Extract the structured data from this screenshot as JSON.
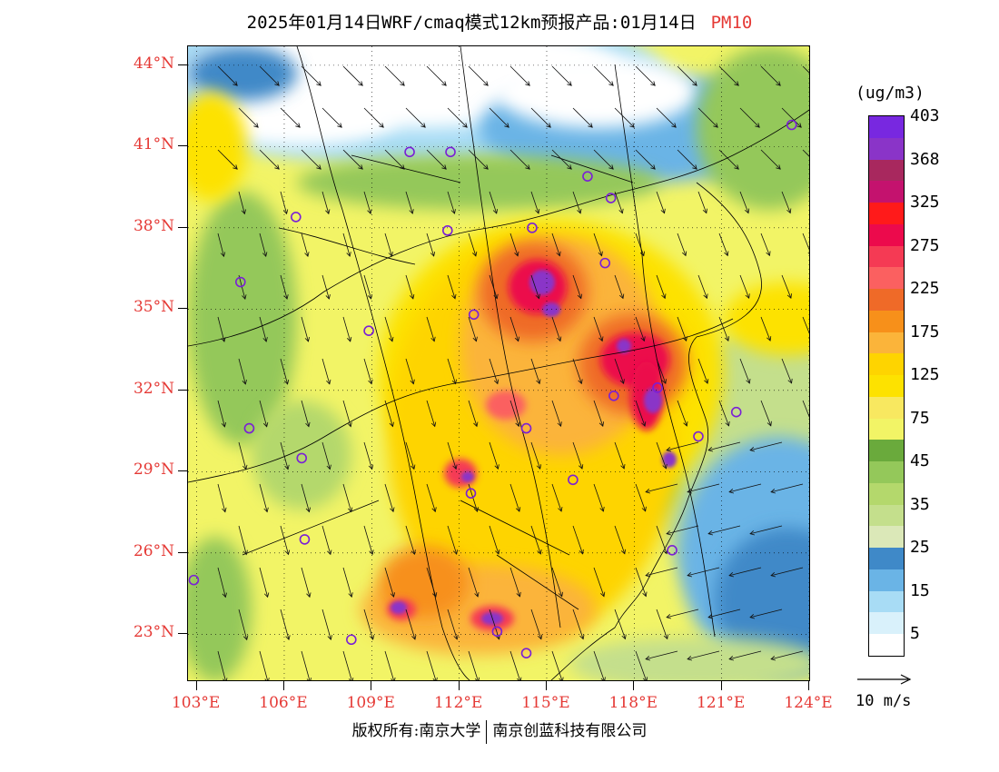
{
  "header": {
    "title": "2025年01月14日WRF/cmaq模式12km预报产品:01月14日",
    "product": "PM10",
    "product_color": "#e53935"
  },
  "map": {
    "extent": {
      "lon": [
        102.7,
        124.0
      ],
      "lat": [
        21.3,
        44.7
      ]
    },
    "lat_labels": [
      {
        "text": "44°N",
        "value": 44
      },
      {
        "text": "41°N",
        "value": 41
      },
      {
        "text": "38°N",
        "value": 38
      },
      {
        "text": "35°N",
        "value": 35
      },
      {
        "text": "32°N",
        "value": 32
      },
      {
        "text": "29°N",
        "value": 29
      },
      {
        "text": "26°N",
        "value": 26
      },
      {
        "text": "23°N",
        "value": 23
      }
    ],
    "lon_labels": [
      {
        "text": "103°E",
        "value": 103
      },
      {
        "text": "106°E",
        "value": 106
      },
      {
        "text": "109°E",
        "value": 109
      },
      {
        "text": "112°E",
        "value": 112
      },
      {
        "text": "115°E",
        "value": 115
      },
      {
        "text": "118°E",
        "value": 118
      },
      {
        "text": "121°E",
        "value": 121
      },
      {
        "text": "124°E",
        "value": 124
      }
    ],
    "wind": "north to northwesterly flow over land, northeasterly over the East China Sea",
    "station_markers": [
      {
        "lon": 102.9,
        "lat": 25.0
      },
      {
        "lon": 104.5,
        "lat": 36.0
      },
      {
        "lon": 104.8,
        "lat": 30.6
      },
      {
        "lon": 106.4,
        "lat": 38.4
      },
      {
        "lon": 106.6,
        "lat": 29.5
      },
      {
        "lon": 106.7,
        "lat": 26.5
      },
      {
        "lon": 108.3,
        "lat": 22.8
      },
      {
        "lon": 108.9,
        "lat": 34.2
      },
      {
        "lon": 110.3,
        "lat": 40.8
      },
      {
        "lon": 111.7,
        "lat": 40.8
      },
      {
        "lon": 111.6,
        "lat": 37.9
      },
      {
        "lon": 112.5,
        "lat": 34.8
      },
      {
        "lon": 112.4,
        "lat": 28.2
      },
      {
        "lon": 113.3,
        "lat": 23.1
      },
      {
        "lon": 114.5,
        "lat": 38.0
      },
      {
        "lon": 114.3,
        "lat": 30.6
      },
      {
        "lon": 115.9,
        "lat": 28.7
      },
      {
        "lon": 117.0,
        "lat": 36.7
      },
      {
        "lon": 117.3,
        "lat": 31.8
      },
      {
        "lon": 116.4,
        "lat": 39.9
      },
      {
        "lon": 117.2,
        "lat": 39.1
      },
      {
        "lon": 118.8,
        "lat": 32.1
      },
      {
        "lon": 119.3,
        "lat": 26.1
      },
      {
        "lon": 120.2,
        "lat": 30.3
      },
      {
        "lon": 121.5,
        "lat": 31.2
      },
      {
        "lon": 123.4,
        "lat": 41.8
      },
      {
        "lon": 114.3,
        "lat": 22.3
      }
    ]
  },
  "colorbar": {
    "unit": "(ug/m3)",
    "colors_bottom_to_top": [
      "#ffffff",
      "#d9f1fb",
      "#a8dcf5",
      "#6ab4e6",
      "#3f89c8",
      "#dbe8b8",
      "#c4df8c",
      "#b4d86c",
      "#94c85a",
      "#6aaa3c",
      "#f2f466",
      "#f8e860",
      "#fde200",
      "#fed400",
      "#fbb43a",
      "#f7901a",
      "#ef6a28",
      "#fb6060",
      "#f53a54",
      "#ec0a4c",
      "#ff1a1a",
      "#c4126e",
      "#a8285e",
      "#8a34c8",
      "#7828e0"
    ],
    "labels": [
      {
        "text": "5",
        "index": 1
      },
      {
        "text": "15",
        "index": 3
      },
      {
        "text": "25",
        "index": 5
      },
      {
        "text": "35",
        "index": 7
      },
      {
        "text": "45",
        "index": 9
      },
      {
        "text": "75",
        "index": 11
      },
      {
        "text": "125",
        "index": 13
      },
      {
        "text": "175",
        "index": 15
      },
      {
        "text": "225",
        "index": 17
      },
      {
        "text": "275",
        "index": 19
      },
      {
        "text": "325",
        "index": 21
      },
      {
        "text": "368",
        "index": 23
      },
      {
        "text": "403",
        "index": 25
      }
    ]
  },
  "wind_reference": {
    "label": "10 m/s"
  },
  "footer": {
    "copyright_a": "版权所有:南京大学",
    "copyright_b": "南京创蓝科技有限公司"
  }
}
